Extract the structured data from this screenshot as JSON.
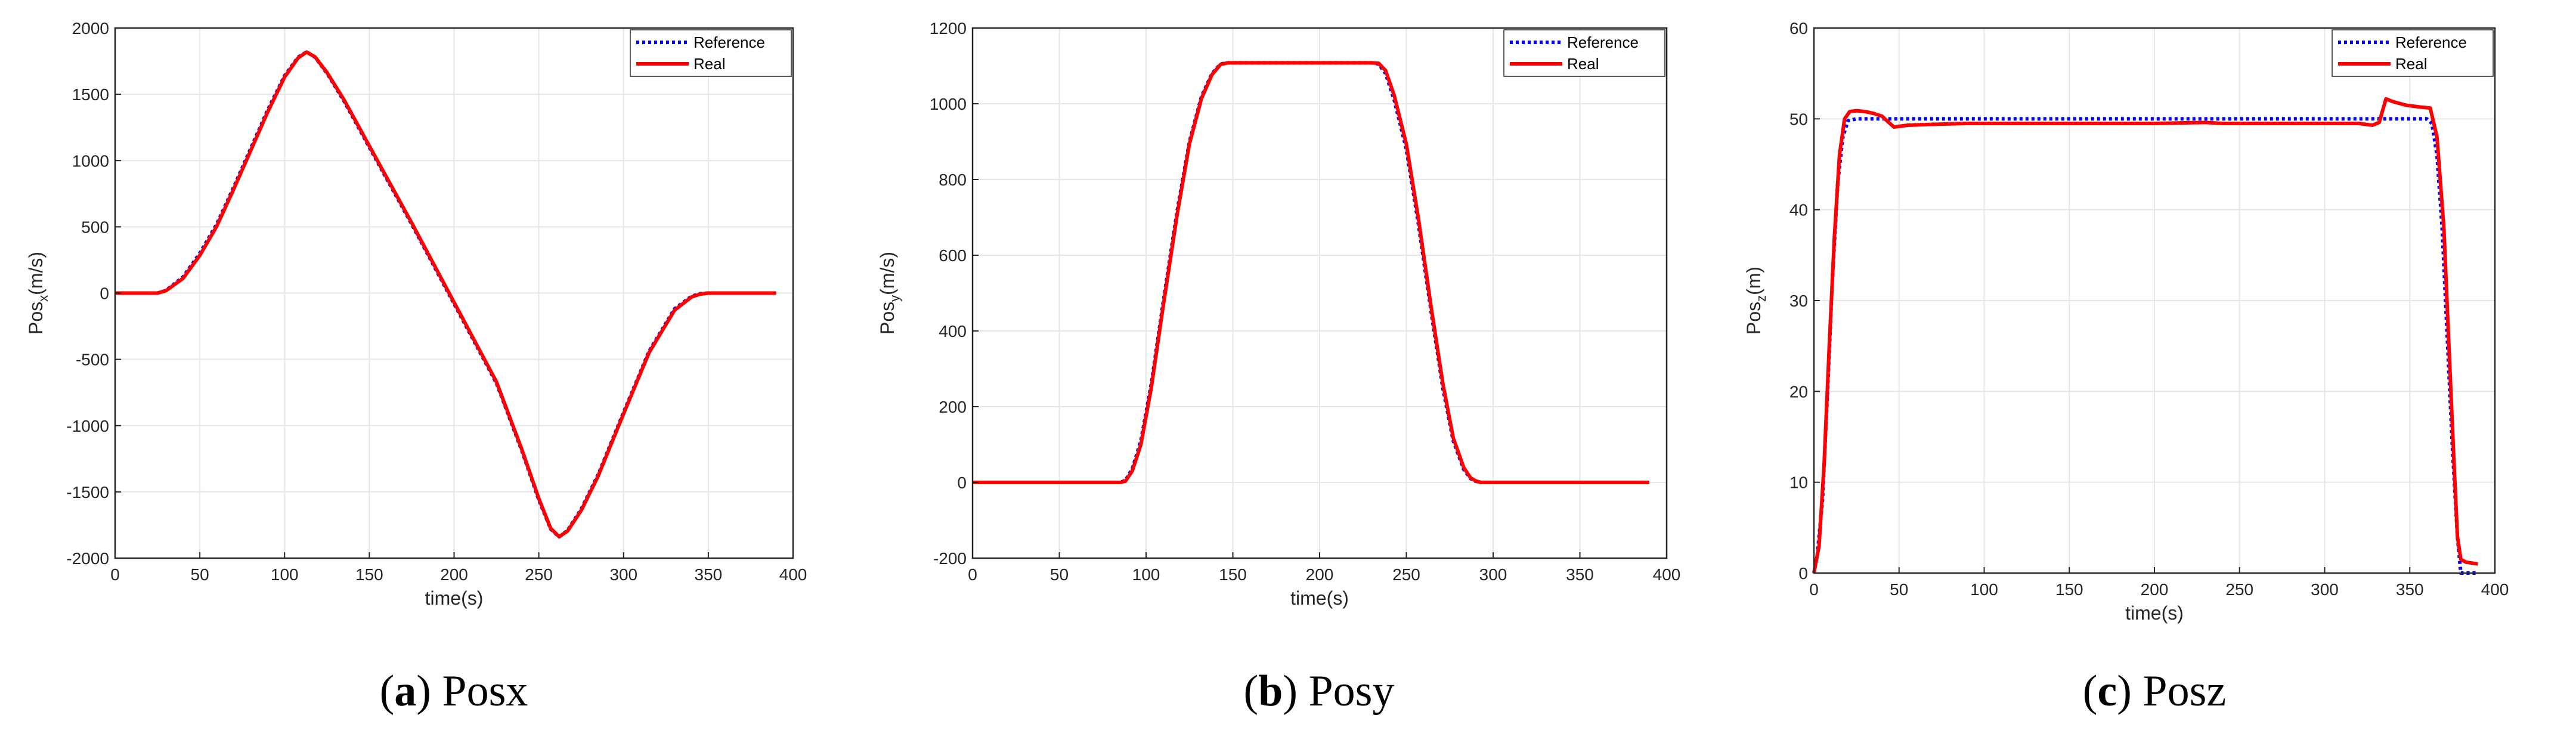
{
  "colors": {
    "reference": "#0000ff",
    "real": "#ff0000",
    "axis": "#262626",
    "grid": "#e6e6e6"
  },
  "chart_data": [
    {
      "type": "line",
      "caption": {
        "letter": "a",
        "text": "Posx"
      },
      "xlabel": "time(s)",
      "ylabel": {
        "base": "Pos",
        "sub": "x",
        "unit": "(m/s)"
      },
      "xlim": [
        0,
        400
      ],
      "ylim": [
        -2000,
        2000
      ],
      "xticks": [
        0,
        50,
        100,
        150,
        200,
        250,
        300,
        350,
        400
      ],
      "yticks": [
        -2000,
        -1500,
        -1000,
        -500,
        0,
        500,
        1000,
        1500,
        2000
      ],
      "grid": true,
      "legend_position": "top-right",
      "series": [
        {
          "name": "Reference",
          "style": "dotted",
          "color": "#0000ff",
          "x": [
            0,
            25,
            30,
            40,
            50,
            60,
            70,
            80,
            90,
            100,
            108,
            113,
            118,
            125,
            135,
            150,
            175,
            200,
            225,
            240,
            250,
            257,
            262,
            267,
            275,
            285,
            300,
            315,
            330,
            340,
            345,
            350,
            390
          ],
          "y": [
            0,
            0,
            20,
            120,
            300,
            520,
            800,
            1090,
            1380,
            1640,
            1780,
            1820,
            1780,
            1660,
            1450,
            1100,
            520,
            -80,
            -680,
            -1190,
            -1560,
            -1780,
            -1840,
            -1790,
            -1630,
            -1370,
            -900,
            -440,
            -120,
            -25,
            -5,
            0,
            0
          ]
        },
        {
          "name": "Real",
          "style": "solid",
          "color": "#ff0000",
          "x": [
            0,
            25,
            30,
            40,
            50,
            60,
            70,
            80,
            90,
            100,
            108,
            113,
            118,
            125,
            135,
            150,
            175,
            200,
            225,
            240,
            250,
            257,
            262,
            267,
            275,
            285,
            300,
            315,
            330,
            340,
            345,
            350,
            390
          ],
          "y": [
            0,
            0,
            18,
            110,
            285,
            505,
            785,
            1075,
            1365,
            1630,
            1775,
            1818,
            1782,
            1665,
            1460,
            1110,
            530,
            -70,
            -670,
            -1180,
            -1550,
            -1775,
            -1838,
            -1795,
            -1640,
            -1380,
            -910,
            -450,
            -130,
            -30,
            -8,
            0,
            0
          ]
        }
      ]
    },
    {
      "type": "line",
      "caption": {
        "letter": "b",
        "text": "Posy"
      },
      "xlabel": "time(s)",
      "ylabel": {
        "base": "Pos",
        "sub": "y",
        "unit": "(m/s)"
      },
      "xlim": [
        0,
        400
      ],
      "ylim": [
        -200,
        1200
      ],
      "xticks": [
        0,
        50,
        100,
        150,
        200,
        250,
        300,
        350,
        400
      ],
      "yticks": [
        -200,
        0,
        200,
        400,
        600,
        800,
        1000,
        1200
      ],
      "grid": true,
      "legend_position": "top-right",
      "series": [
        {
          "name": "Reference",
          "style": "dotted",
          "color": "#0000ff",
          "x": [
            0,
            85,
            88,
            92,
            97,
            103,
            110,
            118,
            125,
            132,
            138,
            143,
            147,
            230,
            234,
            238,
            243,
            250,
            257,
            264,
            271,
            277,
            283,
            287,
            290,
            293,
            390
          ],
          "y": [
            0,
            0,
            5,
            35,
            110,
            260,
            480,
            720,
            900,
            1020,
            1080,
            1105,
            1108,
            1108,
            1105,
            1080,
            1010,
            880,
            680,
            460,
            250,
            110,
            35,
            10,
            3,
            0,
            0
          ]
        },
        {
          "name": "Real",
          "style": "solid",
          "color": "#ff0000",
          "x": [
            0,
            85,
            88,
            92,
            97,
            103,
            110,
            118,
            125,
            132,
            138,
            143,
            147,
            230,
            234,
            238,
            243,
            250,
            257,
            264,
            271,
            277,
            283,
            287,
            290,
            293,
            390
          ],
          "y": [
            0,
            0,
            3,
            30,
            100,
            250,
            470,
            710,
            895,
            1015,
            1077,
            1104,
            1108,
            1108,
            1107,
            1088,
            1022,
            893,
            695,
            472,
            262,
            118,
            40,
            12,
            4,
            0,
            0
          ]
        }
      ]
    },
    {
      "type": "line",
      "caption": {
        "letter": "c",
        "text": "Posz"
      },
      "xlabel": "time(s)",
      "ylabel": {
        "base": "Pos",
        "sub": "z",
        "unit": "(m)"
      },
      "xlim": [
        0,
        400
      ],
      "ylim": [
        0,
        60
      ],
      "xticks": [
        0,
        50,
        100,
        150,
        200,
        250,
        300,
        350,
        400
      ],
      "yticks": [
        0,
        10,
        20,
        30,
        40,
        50,
        60
      ],
      "grid": true,
      "legend_position": "top-right",
      "series": [
        {
          "name": "Reference",
          "style": "dotted",
          "color": "#0000ff",
          "x": [
            0,
            2,
            5,
            8,
            11,
            14,
            17,
            20,
            25,
            360,
            363,
            366,
            369,
            372,
            375,
            378,
            380,
            390
          ],
          "y": [
            0,
            2,
            8,
            20,
            33,
            43,
            48,
            49.8,
            50,
            50,
            49.5,
            46,
            38,
            26,
            14,
            4,
            0,
            0
          ]
        },
        {
          "name": "Real",
          "style": "solid",
          "color": "#ff0000",
          "x": [
            0,
            3,
            6,
            9,
            12,
            15,
            18,
            21,
            25,
            30,
            35,
            40,
            44,
            47,
            55,
            70,
            90,
            110,
            150,
            200,
            230,
            240,
            280,
            320,
            328,
            332,
            336,
            340,
            348,
            356,
            362,
            366,
            370,
            373,
            376,
            378,
            380,
            383,
            390
          ],
          "y": [
            0,
            3,
            12,
            25,
            37,
            46,
            50,
            50.8,
            50.9,
            50.8,
            50.6,
            50.3,
            49.6,
            49.1,
            49.3,
            49.4,
            49.5,
            49.5,
            49.5,
            49.5,
            49.6,
            49.5,
            49.5,
            49.5,
            49.3,
            49.6,
            52.2,
            51.9,
            51.5,
            51.3,
            51.2,
            48,
            38,
            25,
            12,
            4,
            1.5,
            1.2,
            1.0
          ]
        }
      ]
    }
  ]
}
